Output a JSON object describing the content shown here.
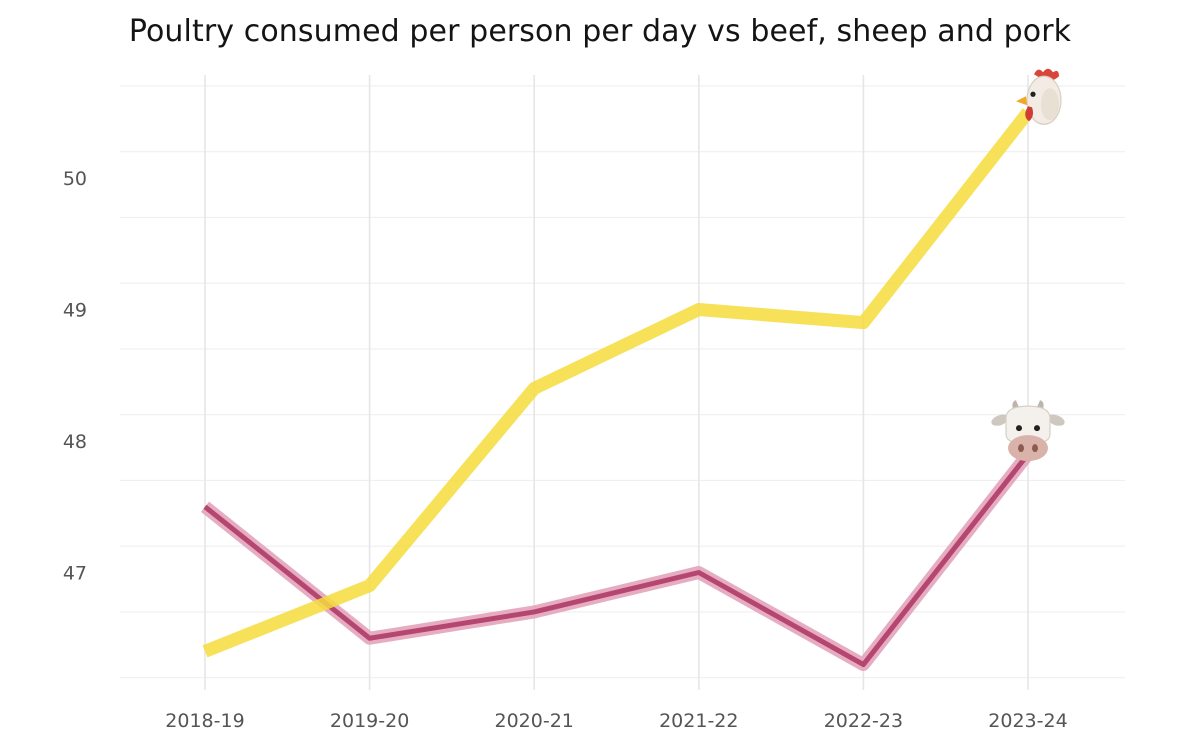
{
  "chart_data": {
    "type": "line",
    "title": "Poultry consumed per person per day vs beef, sheep and pork",
    "xlabel": "",
    "ylabel": "",
    "categories": [
      "2018-19",
      "2019-20",
      "2020-21",
      "2021-22",
      "2022-23",
      "2023-24"
    ],
    "y_ticks": [
      47,
      48,
      49,
      50
    ],
    "ylim": [
      46.2,
      50.8
    ],
    "grid": true,
    "legend": "none",
    "series": [
      {
        "key": "poultry",
        "color": "#f5dc3c",
        "end_marker": "chicken-icon",
        "values": [
          46.4,
          46.9,
          48.4,
          49.0,
          48.9,
          50.5
        ]
      },
      {
        "key": "beef-sheep-pork",
        "color": "#b5466f",
        "end_marker": "cow-icon",
        "values": [
          47.5,
          46.5,
          46.7,
          47.0,
          46.3,
          47.9
        ]
      }
    ]
  }
}
